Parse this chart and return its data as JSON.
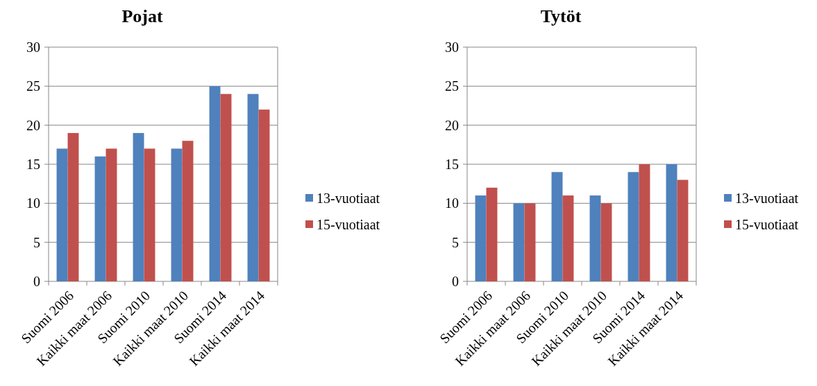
{
  "chart_data": [
    {
      "type": "bar",
      "title": "Pojat",
      "categories": [
        "Suomi 2006",
        "Kaikki maat 2006",
        "Suomi 2010",
        "Kaikki maat 2010",
        "Suomi 2014",
        "Kaikki maat 2014"
      ],
      "series": [
        {
          "name": "13-vuotiaat",
          "color": "#4f81bd",
          "values": [
            17,
            16,
            19,
            17,
            25,
            24
          ]
        },
        {
          "name": "15-vuotiaat",
          "color": "#c0504d",
          "values": [
            19,
            17,
            17,
            18,
            24,
            22
          ]
        }
      ],
      "ylim": [
        0,
        30
      ],
      "yticks": [
        0,
        5,
        10,
        15,
        20,
        25,
        30
      ],
      "grid": "y",
      "legend": "right"
    },
    {
      "type": "bar",
      "title": "Tytöt",
      "categories": [
        "Suomi 2006",
        "Kaikki maat 2006",
        "Suomi 2010",
        "Kaikki maat 2010",
        "Suomi 2014",
        "Kaikki maat 2014"
      ],
      "series": [
        {
          "name": "13-vuotiaat",
          "color": "#4f81bd",
          "values": [
            11,
            10,
            14,
            11,
            14,
            15
          ]
        },
        {
          "name": "15-vuotiaat",
          "color": "#c0504d",
          "values": [
            12,
            10,
            11,
            10,
            15,
            13
          ]
        }
      ],
      "ylim": [
        0,
        30
      ],
      "yticks": [
        0,
        5,
        10,
        15,
        20,
        25,
        30
      ],
      "grid": "y",
      "legend": "right"
    }
  ]
}
